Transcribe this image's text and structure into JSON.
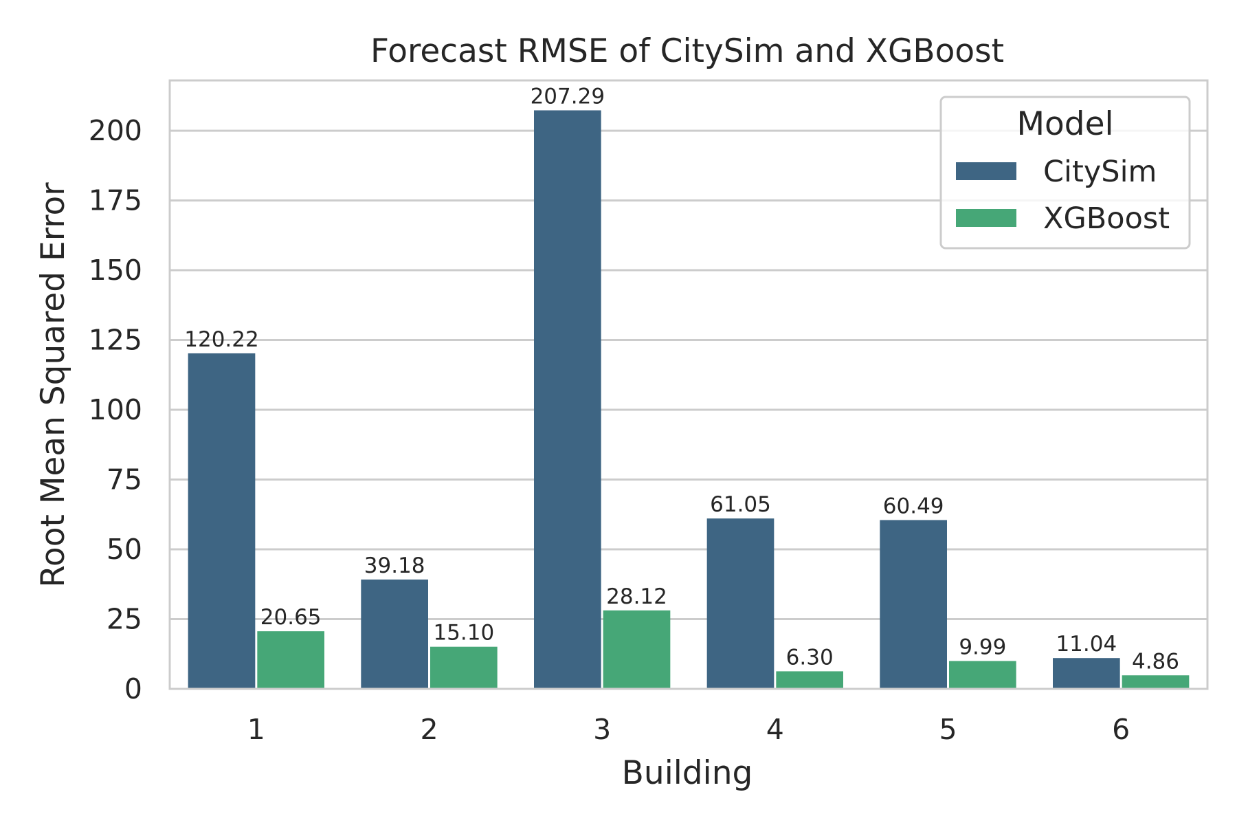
{
  "chart_data": {
    "type": "bar",
    "title": "Forecast RMSE of CitySim and XGBoost",
    "xlabel": "Building",
    "ylabel": "Root Mean Squared Error",
    "categories": [
      "1",
      "2",
      "3",
      "4",
      "5",
      "6"
    ],
    "ylim": [
      0,
      218
    ],
    "yticks": [
      0,
      25,
      50,
      75,
      100,
      125,
      150,
      175,
      200
    ],
    "grid": "horizontal",
    "legend": {
      "title": "Model",
      "position": "top-right"
    },
    "series": [
      {
        "name": "CitySim",
        "color": "#3e6583",
        "values": [
          120.22,
          39.18,
          207.29,
          61.05,
          60.49,
          11.04
        ],
        "labels": [
          "120.22",
          "39.18",
          "207.29",
          "61.05",
          "60.49",
          "11.04"
        ]
      },
      {
        "name": "XGBoost",
        "color": "#46a777",
        "values": [
          20.65,
          15.1,
          28.12,
          6.3,
          9.99,
          4.86
        ],
        "labels": [
          "20.65",
          "15.10",
          "28.12",
          "6.30",
          "9.99",
          "4.86"
        ]
      }
    ]
  }
}
